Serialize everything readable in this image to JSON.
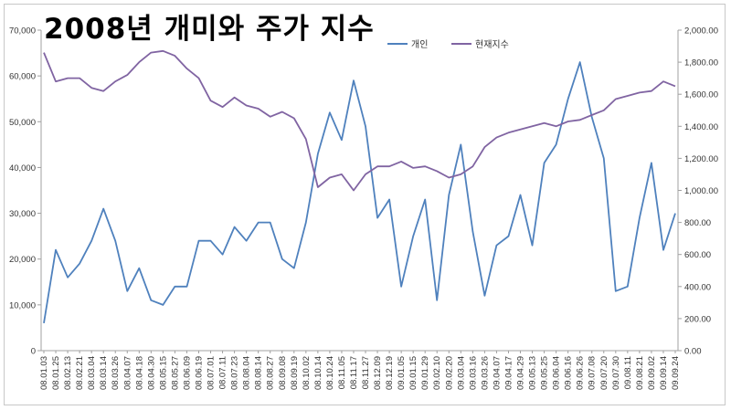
{
  "chart_data": {
    "type": "line",
    "title": "2008년 개미와 주가 지수",
    "legend_position": "top-right",
    "grid": false,
    "x": [
      "08.01.03",
      "08.01.25",
      "08.02.13",
      "08.02.21",
      "08.03.04",
      "08.03.14",
      "08.03.26",
      "08.04.07",
      "08.04.18",
      "08.04.30",
      "08.05.15",
      "08.05.27",
      "08.06.09",
      "08.06.19",
      "08.07.01",
      "08.07.11",
      "08.07.23",
      "08.08.04",
      "08.08.14",
      "08.08.27",
      "08.09.08",
      "08.09.19",
      "08.10.02",
      "08.10.14",
      "08.10.24",
      "08.11.05",
      "08.11.17",
      "08.11.27",
      "08.12.09",
      "08.12.19",
      "09.01.05",
      "09.01.15",
      "09.01.29",
      "09.02.10",
      "09.02.20",
      "09.03.04",
      "09.03.16",
      "09.03.26",
      "09.04.07",
      "09.04.17",
      "09.04.29",
      "09.05.13",
      "09.05.25",
      "09.06.04",
      "09.06.16",
      "09.06.26",
      "09.07.08",
      "09.07.20",
      "09.07.30",
      "09.08.11",
      "09.08.21",
      "09.09.02",
      "09.09.14",
      "09.09.24"
    ],
    "series": [
      {
        "name": "개인",
        "axis": "left",
        "color": "#4f81bd",
        "values": [
          6000,
          22000,
          16000,
          19000,
          24000,
          31000,
          24000,
          13000,
          18000,
          11000,
          10000,
          14000,
          14000,
          24000,
          24000,
          21000,
          27000,
          24000,
          28000,
          28000,
          20000,
          18000,
          28000,
          43000,
          52000,
          46000,
          59000,
          49000,
          29000,
          33000,
          14000,
          25000,
          33000,
          11000,
          34000,
          45000,
          26000,
          12000,
          23000,
          25000,
          34000,
          23000,
          41000,
          45000,
          55000,
          63000,
          51000,
          42000,
          13000,
          14000,
          29000,
          41000,
          22000,
          30000
        ]
      },
      {
        "name": "현재지수",
        "axis": "right",
        "color": "#8064a2",
        "values": [
          1860,
          1680,
          1700,
          1700,
          1640,
          1620,
          1680,
          1720,
          1800,
          1860,
          1870,
          1840,
          1760,
          1700,
          1560,
          1520,
          1580,
          1530,
          1510,
          1460,
          1490,
          1450,
          1320,
          1020,
          1080,
          1100,
          1000,
          1100,
          1150,
          1150,
          1180,
          1140,
          1150,
          1120,
          1080,
          1100,
          1150,
          1270,
          1330,
          1360,
          1380,
          1400,
          1420,
          1400,
          1430,
          1440,
          1470,
          1500,
          1570,
          1590,
          1610,
          1620,
          1680,
          1650
        ]
      }
    ],
    "y_left": {
      "min": 0,
      "max": 70000,
      "ticks": [
        "0",
        "10,000",
        "20,000",
        "30,000",
        "40,000",
        "50,000",
        "60,000",
        "70,000"
      ]
    },
    "y_right": {
      "min": 0,
      "max": 2000,
      "ticks": [
        "0.00",
        "200.00",
        "400.00",
        "600.00",
        "800.00",
        "1,000.00",
        "1,200.00",
        "1,400.00",
        "1,600.00",
        "1,800.00",
        "2,000.00"
      ]
    },
    "xlabel": "",
    "ylabel": ""
  },
  "colors": {
    "axis": "#a0a0a0",
    "frame": "#c8c8c8"
  }
}
